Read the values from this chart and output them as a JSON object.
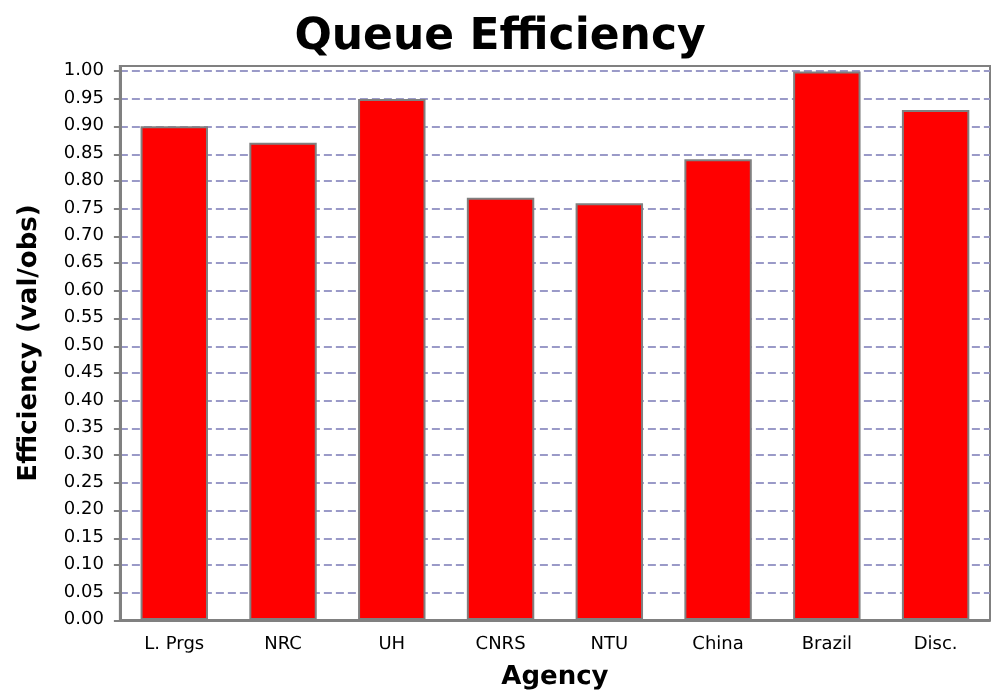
{
  "chart_data": {
    "type": "bar",
    "title": "Queue Efficiency",
    "xlabel": "Agency",
    "ylabel": "Efficiency (val/obs)",
    "categories": [
      "L. Prgs",
      "NRC",
      "UH",
      "CNRS",
      "NTU",
      "China",
      "Brazil",
      "Disc."
    ],
    "values": [
      0.9,
      0.87,
      0.95,
      0.77,
      0.76,
      0.84,
      1.0,
      0.93
    ],
    "color": "#ff0000",
    "ylim": [
      0,
      1.01
    ],
    "yticks": [
      {
        "value": 0,
        "label": "0.00"
      },
      {
        "value": 0.05,
        "label": "0.05"
      },
      {
        "value": 0.1,
        "label": "0.10"
      },
      {
        "value": 0.15,
        "label": "0.15"
      },
      {
        "value": 0.2,
        "label": "0.20"
      },
      {
        "value": 0.25,
        "label": "0.25"
      },
      {
        "value": 0.3,
        "label": "0.30"
      },
      {
        "value": 0.35,
        "label": "0.35"
      },
      {
        "value": 0.4,
        "label": "0.40"
      },
      {
        "value": 0.45,
        "label": "0.45"
      },
      {
        "value": 0.5,
        "label": "0.50"
      },
      {
        "value": 0.55,
        "label": "0.55"
      },
      {
        "value": 0.6,
        "label": "0.60"
      },
      {
        "value": 0.65,
        "label": "0.65"
      },
      {
        "value": 0.7,
        "label": "0.70"
      },
      {
        "value": 0.75,
        "label": "0.75"
      },
      {
        "value": 0.8,
        "label": "0.80"
      },
      {
        "value": 0.85,
        "label": "0.85"
      },
      {
        "value": 0.9,
        "label": "0.90"
      },
      {
        "value": 0.95,
        "label": "0.95"
      },
      {
        "value": 1,
        "label": "1.00"
      }
    ],
    "grid": "y"
  }
}
